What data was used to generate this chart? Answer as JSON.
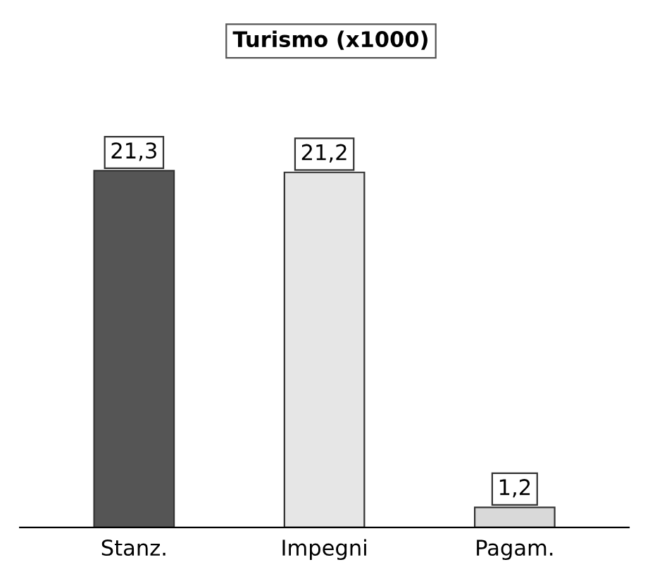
{
  "chart_data": {
    "type": "bar",
    "title": "Turismo (x1000)",
    "categories": [
      "Stanz.",
      "Impegni",
      "Pagam."
    ],
    "values": [
      21.3,
      21.2,
      1.2
    ],
    "value_labels": [
      "21,3",
      "21,2",
      "1,2"
    ],
    "colors": [
      "#555555",
      "#e6e6e6",
      "#d9d9d9"
    ],
    "grid": false,
    "legend": false
  }
}
